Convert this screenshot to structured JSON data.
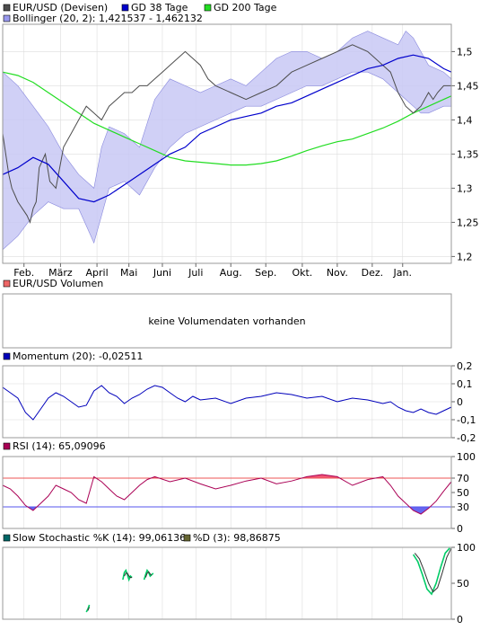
{
  "colors": {
    "price": "#4d4d4d",
    "gd38": "#0000cc",
    "gd200": "#22dd22",
    "bollinger_fill": "#c8c8f4",
    "bollinger_legend": "#9999ee",
    "volume_legend": "#ee6666",
    "momentum": "#0000bb",
    "rsi_line": "#aa0055",
    "rsi_over": "#ee4466",
    "rsi_under": "#5555ee",
    "rsi_70": "#ee5555",
    "rsi_30": "#5555ee",
    "stoch_k": "#00cc66",
    "stoch_d": "#333333",
    "grid": "#dddddd",
    "border": "#999999"
  },
  "chart_data": [
    {
      "type": "line",
      "panel": "price",
      "legend": [
        {
          "label": "EUR/USD (Devisen)",
          "color_key": "price"
        },
        {
          "label": "GD 38 Tage",
          "color_key": "gd38"
        },
        {
          "label": "GD 200 Tage",
          "color_key": "gd200"
        }
      ],
      "bollinger_legend": {
        "label": "Bollinger (20, 2): 1,421537 - 1,462132",
        "color_key": "bollinger_legend"
      },
      "months": [
        "Feb.",
        "März",
        "April",
        "Mai",
        "Juni",
        "Juli",
        "Aug.",
        "Sep.",
        "Okt.",
        "Nov.",
        "Dez.",
        "Jan."
      ],
      "yticks": [
        "1,5",
        "1,45",
        "1,4",
        "1,35",
        "1,3",
        "1,25",
        "1,2"
      ],
      "ylim": [
        1.19,
        1.54
      ],
      "price_series": {
        "name": "EUR/USD (Devisen)",
        "x": [
          0,
          2,
          4,
          6,
          8,
          10,
          13,
          16,
          18,
          20,
          22,
          24,
          26,
          28,
          31,
          35,
          40,
          45,
          50,
          55,
          60,
          65,
          70,
          75,
          80,
          85,
          90,
          95,
          100,
          105,
          110,
          115,
          120,
          125,
          130,
          135,
          140,
          150,
          160,
          170,
          180,
          190,
          200,
          210,
          220,
          230,
          240,
          245,
          250,
          255,
          260,
          265,
          270,
          275,
          280,
          283,
          286,
          290,
          295
        ],
        "y": [
          1.38,
          1.35,
          1.32,
          1.3,
          1.29,
          1.28,
          1.27,
          1.26,
          1.25,
          1.27,
          1.28,
          1.33,
          1.34,
          1.35,
          1.31,
          1.3,
          1.36,
          1.38,
          1.4,
          1.42,
          1.41,
          1.4,
          1.42,
          1.43,
          1.44,
          1.44,
          1.45,
          1.45,
          1.46,
          1.47,
          1.48,
          1.49,
          1.5,
          1.49,
          1.48,
          1.46,
          1.45,
          1.44,
          1.43,
          1.44,
          1.45,
          1.47,
          1.48,
          1.49,
          1.5,
          1.51,
          1.5,
          1.49,
          1.48,
          1.47,
          1.44,
          1.42,
          1.41,
          1.42,
          1.44,
          1.43,
          1.44,
          1.45,
          1.45
        ]
      },
      "gd38_series": {
        "name": "GD 38 Tage",
        "x": [
          0,
          10,
          20,
          30,
          40,
          50,
          60,
          70,
          80,
          90,
          100,
          110,
          120,
          130,
          140,
          150,
          160,
          170,
          180,
          190,
          200,
          210,
          220,
          230,
          240,
          250,
          260,
          270,
          280,
          290,
          295
        ],
        "y": [
          1.32,
          1.33,
          1.345,
          1.335,
          1.31,
          1.285,
          1.28,
          1.29,
          1.305,
          1.32,
          1.335,
          1.35,
          1.36,
          1.38,
          1.39,
          1.4,
          1.405,
          1.41,
          1.42,
          1.425,
          1.435,
          1.445,
          1.455,
          1.465,
          1.475,
          1.48,
          1.49,
          1.495,
          1.49,
          1.475,
          1.47
        ]
      },
      "gd200_series": {
        "name": "GD 200 Tage",
        "x": [
          0,
          10,
          20,
          30,
          40,
          50,
          60,
          70,
          80,
          90,
          100,
          110,
          120,
          130,
          140,
          150,
          160,
          170,
          180,
          190,
          200,
          210,
          220,
          230,
          240,
          250,
          260,
          270,
          280,
          290,
          295
        ],
        "y": [
          1.47,
          1.465,
          1.455,
          1.44,
          1.425,
          1.41,
          1.395,
          1.385,
          1.375,
          1.365,
          1.355,
          1.345,
          1.34,
          1.338,
          1.336,
          1.334,
          1.334,
          1.336,
          1.34,
          1.347,
          1.355,
          1.362,
          1.368,
          1.372,
          1.38,
          1.388,
          1.398,
          1.41,
          1.42,
          1.43,
          1.435
        ]
      },
      "bollinger_upper": {
        "x": [
          0,
          10,
          20,
          30,
          40,
          50,
          60,
          65,
          70,
          80,
          90,
          100,
          110,
          120,
          130,
          140,
          150,
          160,
          170,
          180,
          190,
          200,
          210,
          220,
          230,
          240,
          250,
          260,
          265,
          270,
          275,
          280,
          290,
          295
        ],
        "y": [
          1.47,
          1.45,
          1.42,
          1.39,
          1.35,
          1.32,
          1.3,
          1.36,
          1.39,
          1.38,
          1.36,
          1.43,
          1.46,
          1.45,
          1.44,
          1.45,
          1.46,
          1.45,
          1.47,
          1.49,
          1.5,
          1.5,
          1.49,
          1.5,
          1.52,
          1.53,
          1.52,
          1.51,
          1.53,
          1.52,
          1.5,
          1.48,
          1.47,
          1.46
        ]
      },
      "bollinger_lower": {
        "x": [
          0,
          10,
          20,
          30,
          40,
          50,
          60,
          65,
          70,
          80,
          90,
          100,
          110,
          120,
          130,
          140,
          150,
          160,
          170,
          180,
          190,
          200,
          210,
          220,
          230,
          240,
          250,
          260,
          265,
          270,
          275,
          280,
          290,
          295
        ],
        "y": [
          1.21,
          1.23,
          1.26,
          1.28,
          1.27,
          1.27,
          1.22,
          1.26,
          1.3,
          1.31,
          1.29,
          1.33,
          1.36,
          1.38,
          1.39,
          1.4,
          1.41,
          1.42,
          1.42,
          1.43,
          1.44,
          1.45,
          1.45,
          1.46,
          1.47,
          1.47,
          1.46,
          1.44,
          1.43,
          1.42,
          1.41,
          1.41,
          1.42,
          1.42
        ]
      }
    },
    {
      "type": "bar",
      "panel": "volume",
      "legend": [
        {
          "label": "EUR/USD Volumen",
          "color_key": "volume_legend"
        }
      ],
      "empty_message": "keine Volumendaten vorhanden"
    },
    {
      "type": "line",
      "panel": "momentum",
      "legend": [
        {
          "label": "Momentum (20): -0,02511",
          "color_key": "momentum"
        }
      ],
      "yticks": [
        "0,2",
        "0,1",
        "0",
        "-0,1",
        "-0,2"
      ],
      "ylim": [
        -0.2,
        0.2
      ],
      "x": [
        0,
        5,
        10,
        15,
        20,
        25,
        30,
        35,
        40,
        45,
        50,
        55,
        60,
        65,
        70,
        75,
        80,
        85,
        90,
        95,
        100,
        105,
        110,
        115,
        120,
        125,
        130,
        140,
        150,
        160,
        170,
        180,
        190,
        200,
        210,
        220,
        230,
        240,
        250,
        255,
        260,
        265,
        270,
        275,
        280,
        285,
        290,
        295
      ],
      "y": [
        0.08,
        0.05,
        0.02,
        -0.06,
        -0.1,
        -0.04,
        0.02,
        0.05,
        0.03,
        0.0,
        -0.03,
        -0.02,
        0.06,
        0.09,
        0.05,
        0.03,
        -0.01,
        0.02,
        0.04,
        0.07,
        0.09,
        0.08,
        0.05,
        0.02,
        0.0,
        0.03,
        0.01,
        0.02,
        -0.01,
        0.02,
        0.03,
        0.05,
        0.04,
        0.02,
        0.03,
        0.0,
        0.02,
        0.01,
        -0.01,
        0.0,
        -0.03,
        -0.05,
        -0.06,
        -0.04,
        -0.06,
        -0.07,
        -0.05,
        -0.03
      ]
    },
    {
      "type": "line",
      "panel": "rsi",
      "legend": [
        {
          "label": "RSI (14): 65,09096",
          "color_key": "rsi_line"
        }
      ],
      "yticks": [
        "100",
        "70",
        "50",
        "30",
        "0"
      ],
      "ylim": [
        0,
        100
      ],
      "thresholds": [
        70,
        30
      ],
      "x": [
        0,
        5,
        10,
        15,
        20,
        25,
        30,
        35,
        40,
        45,
        50,
        55,
        60,
        65,
        70,
        75,
        80,
        85,
        90,
        95,
        100,
        110,
        120,
        130,
        140,
        150,
        160,
        170,
        180,
        190,
        200,
        210,
        220,
        230,
        240,
        250,
        255,
        260,
        265,
        270,
        275,
        280,
        285,
        290,
        295
      ],
      "y": [
        60,
        55,
        45,
        32,
        25,
        35,
        45,
        60,
        55,
        50,
        40,
        35,
        72,
        65,
        55,
        45,
        40,
        50,
        60,
        68,
        72,
        65,
        70,
        62,
        55,
        60,
        66,
        70,
        62,
        66,
        72,
        75,
        72,
        60,
        68,
        72,
        60,
        45,
        35,
        25,
        20,
        28,
        38,
        52,
        65
      ]
    },
    {
      "type": "line",
      "panel": "stochastic",
      "legend": [
        {
          "label": "Slow Stochastic %K (14): 99,06136",
          "color_key": "stoch_k"
        },
        {
          "label": "%D (3): 98,86875",
          "color_key": "stoch_d"
        }
      ],
      "yticks": [
        "100",
        "50",
        "0"
      ],
      "ylim": [
        0,
        100
      ],
      "segments_k": [
        {
          "x": [
            55,
            56,
            57
          ],
          "y": [
            10,
            14,
            20
          ]
        },
        {
          "x": [
            79,
            80,
            81,
            82,
            83,
            84,
            85
          ],
          "y": [
            55,
            65,
            68,
            62,
            55,
            60,
            58
          ]
        },
        {
          "x": [
            93,
            94,
            95,
            96,
            97,
            98,
            99
          ],
          "y": [
            55,
            62,
            68,
            65,
            60,
            62,
            64
          ]
        },
        {
          "x": [
            270,
            273,
            276,
            279,
            282,
            285,
            288,
            291,
            294
          ],
          "y": [
            90,
            80,
            62,
            42,
            35,
            50,
            72,
            92,
            99
          ]
        }
      ],
      "segments_d": [
        {
          "x": [
            56,
            57
          ],
          "y": [
            12,
            17
          ]
        },
        {
          "x": [
            80,
            81,
            82,
            83,
            84,
            85
          ],
          "y": [
            60,
            64,
            64,
            60,
            58,
            58
          ]
        },
        {
          "x": [
            94,
            95,
            96,
            97,
            98
          ],
          "y": [
            58,
            64,
            66,
            63,
            61
          ]
        },
        {
          "x": [
            271,
            274,
            277,
            280,
            283,
            286,
            289,
            292,
            295
          ],
          "y": [
            92,
            84,
            68,
            50,
            38,
            44,
            64,
            86,
            99
          ]
        }
      ]
    }
  ]
}
